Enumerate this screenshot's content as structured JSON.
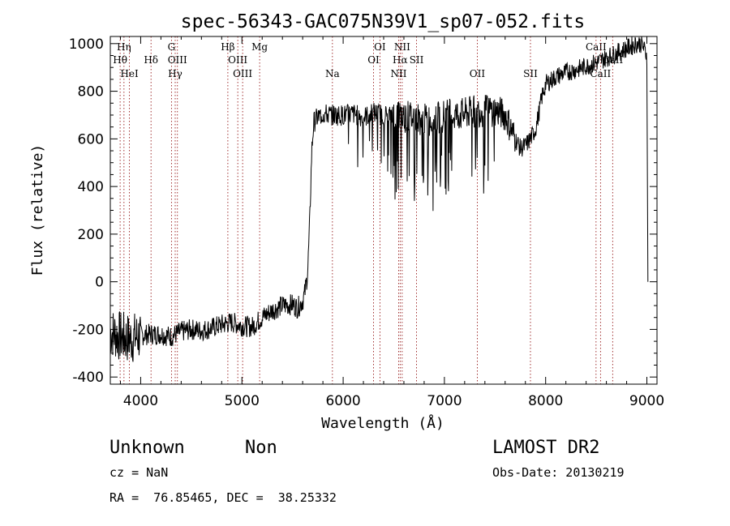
{
  "chart_data": {
    "type": "line",
    "title": "spec-56343-GAC075N39V1_sp07-052.fits",
    "xlabel": "Wavelength (Å)",
    "ylabel": "Flux (relative)",
    "xlim": [
      3700,
      9100
    ],
    "ylim": [
      -430,
      1030
    ],
    "xticks": [
      4000,
      5000,
      6000,
      7000,
      8000,
      9000
    ],
    "yticks": [
      -400,
      -200,
      0,
      200,
      400,
      600,
      800,
      1000
    ],
    "grid": false,
    "spectrum_knots": [
      [
        3700,
        -210
      ],
      [
        3800,
        -230
      ],
      [
        3900,
        -240
      ],
      [
        4000,
        -225
      ],
      [
        4100,
        -220
      ],
      [
        4200,
        -220
      ],
      [
        4300,
        -230
      ],
      [
        4400,
        -210
      ],
      [
        4500,
        -200
      ],
      [
        4600,
        -205
      ],
      [
        4700,
        -195
      ],
      [
        4800,
        -180
      ],
      [
        4900,
        -170
      ],
      [
        5000,
        -185
      ],
      [
        5100,
        -190
      ],
      [
        5200,
        -150
      ],
      [
        5300,
        -120
      ],
      [
        5400,
        -100
      ],
      [
        5500,
        -95
      ],
      [
        5550,
        -110
      ],
      [
        5600,
        -80
      ],
      [
        5620,
        -50
      ],
      [
        5650,
        40
      ],
      [
        5670,
        250
      ],
      [
        5690,
        550
      ],
      [
        5710,
        670
      ],
      [
        5750,
        690
      ],
      [
        5800,
        705
      ],
      [
        5900,
        700
      ],
      [
        6000,
        700
      ],
      [
        6100,
        705
      ],
      [
        6200,
        690
      ],
      [
        6300,
        710
      ],
      [
        6400,
        700
      ],
      [
        6500,
        700
      ],
      [
        6600,
        695
      ],
      [
        6700,
        690
      ],
      [
        6800,
        680
      ],
      [
        6900,
        680
      ],
      [
        7000,
        700
      ],
      [
        7100,
        700
      ],
      [
        7200,
        705
      ],
      [
        7300,
        715
      ],
      [
        7400,
        720
      ],
      [
        7500,
        720
      ],
      [
        7600,
        700
      ],
      [
        7700,
        600
      ],
      [
        7750,
        560
      ],
      [
        7800,
        570
      ],
      [
        7850,
        600
      ],
      [
        7900,
        640
      ],
      [
        7930,
        700
      ],
      [
        7960,
        770
      ],
      [
        8000,
        830
      ],
      [
        8100,
        860
      ],
      [
        8200,
        880
      ],
      [
        8300,
        890
      ],
      [
        8400,
        905
      ],
      [
        8500,
        920
      ],
      [
        8600,
        940
      ],
      [
        8700,
        960
      ],
      [
        8800,
        980
      ],
      [
        8900,
        1000
      ],
      [
        8950,
        1000
      ],
      [
        9000,
        950
      ]
    ],
    "spectral_lines": [
      {
        "name": "Hη",
        "wavelength": 3835,
        "row": 0
      },
      {
        "name": "Hθ",
        "wavelength": 3797,
        "row": 1
      },
      {
        "name": "HeI",
        "wavelength": 3889,
        "row": 2
      },
      {
        "name": "Hδ",
        "wavelength": 4102,
        "row": 1
      },
      {
        "name": "G",
        "wavelength": 4304,
        "row": 0
      },
      {
        "name": "OIII",
        "wavelength": 4363,
        "row": 1
      },
      {
        "name": "Hγ",
        "wavelength": 4341,
        "row": 2
      },
      {
        "name": "Hβ",
        "wavelength": 4861,
        "row": 0
      },
      {
        "name": "OIII",
        "wavelength": 4959,
        "row": 1
      },
      {
        "name": "OIII",
        "wavelength": 5007,
        "row": 2
      },
      {
        "name": "Mg",
        "wavelength": 5175,
        "row": 0
      },
      {
        "name": "Na",
        "wavelength": 5894,
        "row": 2
      },
      {
        "name": "OI",
        "wavelength": 6363,
        "row": 0
      },
      {
        "name": "OI",
        "wavelength": 6300,
        "row": 1
      },
      {
        "name": "NII",
        "wavelength": 6583,
        "row": 0
      },
      {
        "name": "Hα",
        "wavelength": 6563,
        "row": 1
      },
      {
        "name": "SII",
        "wavelength": 6725,
        "row": 1
      },
      {
        "name": "NII",
        "wavelength": 6548,
        "row": 2
      },
      {
        "name": "OII",
        "wavelength": 7325,
        "row": 2
      },
      {
        "name": "SII",
        "wavelength": 7850,
        "row": 2
      },
      {
        "name": "CaII",
        "wavelength": 8498,
        "row": 0
      },
      {
        "name": "CaII",
        "wavelength": 8662,
        "row": 1
      },
      {
        "name": "CaII",
        "wavelength": 8542,
        "row": 2
      }
    ]
  },
  "info": {
    "class_label": "Unknown",
    "subclass_label": "Non",
    "cz_text": "cz = NaN",
    "coords_text": "RA =  76.85465, DEC =  38.25332",
    "survey_label": "LAMOST DR2",
    "obs_date_text": "Obs-Date: 20130219"
  },
  "colors": {
    "spectrum": "#000000",
    "line_markers": "#8b0000",
    "axes": "#000000"
  }
}
